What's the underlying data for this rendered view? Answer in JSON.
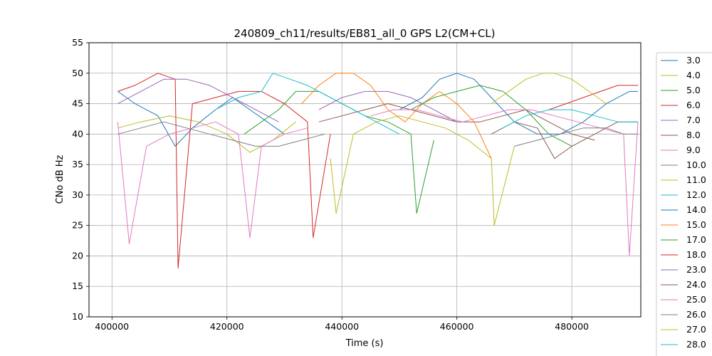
{
  "chart_data": {
    "type": "line",
    "title": "240809_ch11/results/EB81_all_0 GPS L2(CM+CL)",
    "xlabel": "Time (s)",
    "ylabel": "CNo dB Hz",
    "xlim": [
      396000,
      492000
    ],
    "ylim": [
      10,
      55
    ],
    "xticks": [
      400000,
      420000,
      440000,
      460000,
      480000
    ],
    "xtick_labels": [
      "400000",
      "420000",
      "440000",
      "460000",
      "480000"
    ],
    "yticks": [
      10,
      15,
      20,
      25,
      30,
      35,
      40,
      45,
      50,
      55
    ],
    "ytick_labels": [
      "10",
      "15",
      "20",
      "25",
      "30",
      "35",
      "40",
      "45",
      "50",
      "55"
    ],
    "grid": true,
    "legend_position": "right (outside plot)",
    "series": [
      {
        "name": "3.0",
        "color": "#1f77b4",
        "x": [
          401000,
          404000,
          408000,
          411000,
          414000,
          418000,
          421000,
          424000,
          427000,
          430000
        ],
        "y": [
          47,
          45,
          43,
          38,
          41,
          44,
          46,
          44,
          42,
          40
        ]
      },
      {
        "name": "4.0",
        "color": "#bcbd22",
        "x": [
          401000,
          405000,
          410000,
          415000,
          420000,
          424000,
          428000,
          432000
        ],
        "y": [
          41,
          42,
          43,
          42,
          40,
          37,
          39,
          42
        ]
      },
      {
        "name": "5.0",
        "color": "#2ca02c",
        "x": [
          423000,
          426000,
          429000,
          432000,
          436000,
          440000,
          444000,
          448000,
          452000,
          453000,
          456000
        ],
        "y": [
          40,
          42,
          44,
          47,
          47,
          45,
          43,
          42,
          40,
          27,
          39
        ]
      },
      {
        "name": "6.0",
        "color": "#d62728",
        "x": [
          401000,
          404000,
          408000,
          411000,
          411500,
          414000,
          418000,
          422000,
          426000,
          430000,
          434000,
          435000,
          438000
        ],
        "y": [
          47,
          48,
          50,
          49,
          18,
          45,
          46,
          47,
          47,
          45,
          42,
          23,
          40
        ]
      },
      {
        "name": "7.0",
        "color": "#9467bd",
        "x": [
          401000,
          405000,
          409000,
          413000,
          417000,
          421000,
          425000,
          429000
        ],
        "y": [
          45,
          47,
          49,
          49,
          48,
          46,
          44,
          42
        ]
      },
      {
        "name": "8.0",
        "color": "#8c564b",
        "x": [
          436000,
          440000,
          444000,
          448000,
          452000,
          456000,
          460000,
          464000,
          468000,
          472000,
          476000,
          480000,
          484000
        ],
        "y": [
          42,
          43,
          44,
          45,
          44,
          43,
          42,
          42,
          43,
          44,
          42,
          40,
          39
        ]
      },
      {
        "name": "9.0",
        "color": "#e377c2",
        "x": [
          401000,
          403000,
          406000,
          410000,
          414000,
          418000,
          422000,
          424000,
          426000,
          430000,
          434000
        ],
        "y": [
          42,
          22,
          38,
          40,
          41,
          42,
          40,
          23,
          38,
          40,
          41
        ]
      },
      {
        "name": "10.0",
        "color": "#7f7f7f",
        "x": [
          401000,
          405000,
          409000,
          413000,
          417000,
          421000,
          425000,
          429000,
          433000,
          437000
        ],
        "y": [
          40,
          41,
          42,
          41,
          40,
          39,
          38,
          38,
          39,
          40
        ]
      },
      {
        "name": "11.0",
        "color": "#bcbd22",
        "x": [
          438000,
          439000,
          442000,
          446000,
          450000,
          454000,
          458000,
          462000,
          466000,
          466500,
          470000
        ],
        "y": [
          36,
          27,
          40,
          42,
          43,
          42,
          41,
          39,
          36,
          25,
          38
        ]
      },
      {
        "name": "12.0",
        "color": "#17becf",
        "x": [
          418000,
          422000,
          426000,
          428000,
          431000,
          434000,
          438000,
          442000,
          446000,
          450000
        ],
        "y": [
          44,
          46,
          47,
          50,
          49,
          48,
          46,
          44,
          42,
          40
        ]
      },
      {
        "name": "14.0",
        "color": "#1f77b4",
        "x": [
          450000,
          454000,
          457000,
          460000,
          463000,
          466000,
          470000,
          474000,
          478000,
          482000,
          486000,
          490000,
          491500
        ],
        "y": [
          44,
          46,
          49,
          50,
          49,
          46,
          42,
          40,
          40,
          42,
          45,
          47,
          47
        ]
      },
      {
        "name": "15.0",
        "color": "#ff7f0e",
        "x": [
          433000,
          436000,
          439000,
          442000,
          445000,
          448000,
          451000,
          454000,
          457000,
          460000,
          463000,
          466000
        ],
        "y": [
          45,
          48,
          50,
          50,
          48,
          44,
          42,
          45,
          47,
          45,
          42,
          36
        ]
      },
      {
        "name": "17.0",
        "color": "#2ca02c",
        "x": [
          452000,
          456000,
          460000,
          464000,
          468000,
          472000,
          476000,
          480000
        ],
        "y": [
          44,
          46,
          47,
          48,
          47,
          44,
          40,
          38
        ]
      },
      {
        "name": "18.0",
        "color": "#d62728",
        "x": [
          476000,
          479000,
          482000,
          485000,
          488000,
          491500
        ],
        "y": [
          44,
          45,
          46,
          47,
          48,
          48
        ]
      },
      {
        "name": "23.0",
        "color": "#9467bd",
        "x": [
          436000,
          440000,
          444000,
          448000,
          452000,
          456000,
          460000
        ],
        "y": [
          44,
          46,
          47,
          47,
          46,
          44,
          42
        ]
      },
      {
        "name": "24.0",
        "color": "#8c564b",
        "x": [
          466000,
          470000,
          474000,
          477000,
          480000,
          484000,
          488000,
          491500
        ],
        "y": [
          40,
          42,
          41,
          36,
          38,
          40,
          42,
          42
        ]
      },
      {
        "name": "25.0",
        "color": "#e377c2",
        "x": [
          445000,
          449000,
          453000,
          457000,
          461000,
          465000,
          469000,
          473000,
          477000,
          481000,
          485000,
          489000,
          490000,
          491500
        ],
        "y": [
          43,
          44,
          44,
          43,
          42,
          43,
          44,
          44,
          43,
          42,
          41,
          40,
          20,
          42
        ]
      },
      {
        "name": "26.0",
        "color": "#7f7f7f",
        "x": [
          470000,
          474000,
          478000,
          482000,
          486000,
          489000,
          491500
        ],
        "y": [
          38,
          39,
          40,
          41,
          41,
          40,
          40
        ]
      },
      {
        "name": "27.0",
        "color": "#bcbd22",
        "x": [
          466000,
          469000,
          472000,
          475000,
          477000,
          480000,
          483000,
          486000
        ],
        "y": [
          45,
          47,
          49,
          50,
          50,
          49,
          47,
          45
        ]
      },
      {
        "name": "28.0",
        "color": "#17becf",
        "x": [
          468000,
          472000,
          476000,
          480000,
          484000,
          488000,
          491500
        ],
        "y": [
          41,
          43,
          44,
          44,
          43,
          42,
          42
        ]
      }
    ]
  }
}
